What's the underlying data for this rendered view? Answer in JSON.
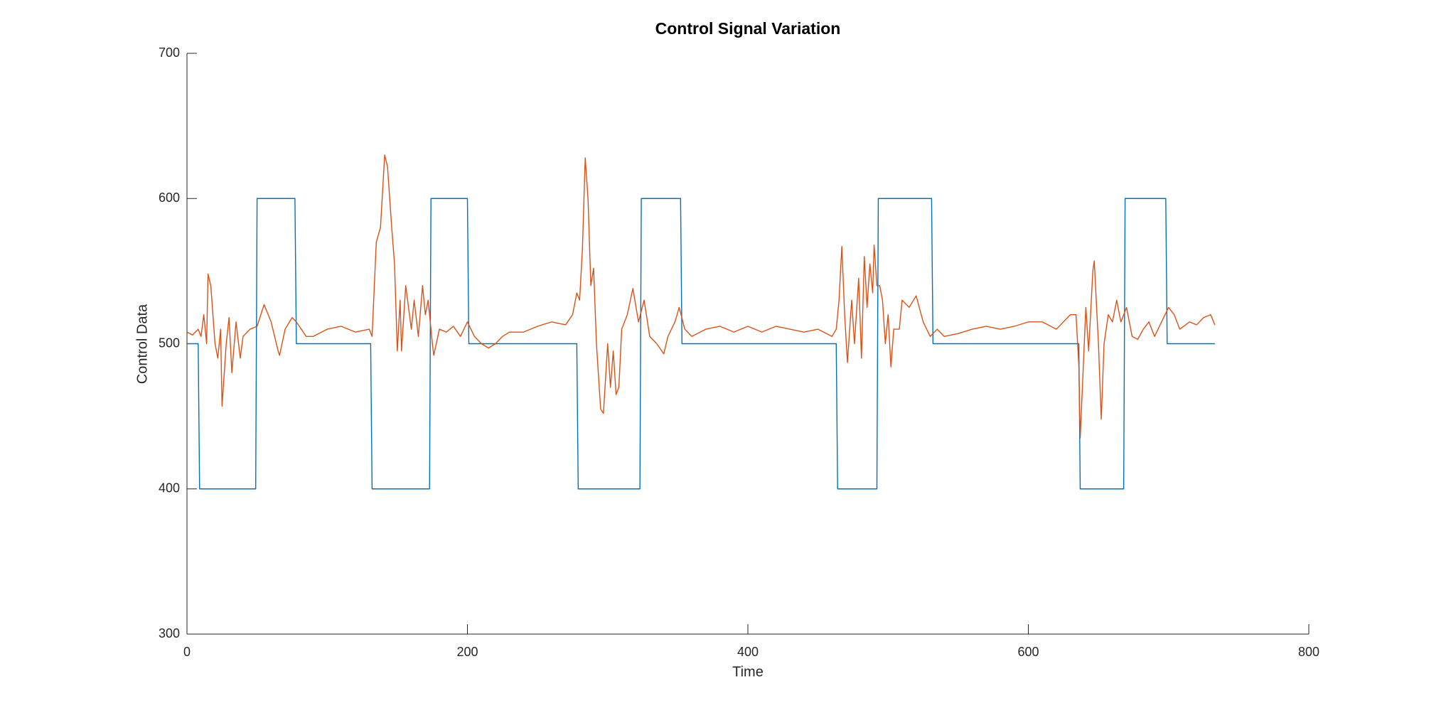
{
  "chart_data": {
    "type": "line",
    "title": "Control Signal Variation",
    "x_label": "Time",
    "y_label": "Control Data",
    "xlim": [
      0,
      800
    ],
    "xticks": [
      0,
      200,
      400,
      600,
      800
    ],
    "ylim": [
      300,
      700
    ],
    "yticks": [
      300,
      400,
      500,
      600,
      700
    ],
    "grid": false,
    "series": [
      {
        "color": "#0072BD",
        "x": [
          0,
          8,
          9,
          49,
          50,
          77,
          78,
          131,
          132,
          173,
          174,
          200,
          201,
          278,
          279,
          323,
          324,
          352,
          353,
          463,
          464,
          492,
          493,
          531,
          532,
          636,
          637,
          668,
          669,
          698,
          699,
          733
        ],
        "values": [
          500,
          500,
          400,
          400,
          600,
          600,
          500,
          500,
          400,
          400,
          600,
          600,
          500,
          500,
          400,
          400,
          600,
          600,
          500,
          500,
          400,
          400,
          600,
          600,
          500,
          500,
          400,
          400,
          600,
          600,
          500,
          500
        ]
      },
      {
        "color": "#D95319",
        "x": [
          0,
          4,
          8,
          10,
          12,
          14,
          15,
          17,
          20,
          22,
          24,
          25,
          28,
          30,
          32,
          35,
          38,
          40,
          45,
          50,
          55,
          60,
          65,
          66,
          70,
          75,
          78,
          85,
          90,
          100,
          110,
          120,
          130,
          132,
          135,
          138,
          141,
          143,
          146,
          148,
          150,
          152,
          153,
          156,
          160,
          162,
          165,
          168,
          170,
          172,
          175,
          176,
          180,
          185,
          190,
          195,
          200,
          205,
          210,
          215,
          220,
          225,
          230,
          240,
          250,
          260,
          270,
          275,
          278,
          280,
          282,
          284,
          286,
          288,
          290,
          292,
          295,
          297,
          300,
          302,
          304,
          306,
          308,
          310,
          314,
          318,
          322,
          326,
          330,
          335,
          340,
          343,
          348,
          351,
          355,
          360,
          370,
          380,
          390,
          400,
          410,
          420,
          430,
          440,
          450,
          460,
          463,
          465,
          467,
          469,
          471,
          474,
          476,
          479,
          481,
          483,
          485,
          487,
          489,
          490,
          492,
          494,
          496,
          498,
          500,
          502,
          504,
          508,
          510,
          515,
          520,
          525,
          530,
          535,
          540,
          550,
          560,
          570,
          580,
          590,
          600,
          610,
          620,
          630,
          634,
          636,
          637,
          639,
          641,
          643,
          646,
          647,
          650,
          652,
          654,
          657,
          660,
          663,
          666,
          670,
          674,
          678,
          682,
          686,
          690,
          695,
          700,
          704,
          708,
          715,
          720,
          725,
          730,
          733
        ],
        "values": [
          508,
          506,
          510,
          505,
          520,
          500,
          548,
          540,
          500,
          490,
          510,
          457,
          500,
          518,
          480,
          515,
          490,
          505,
          510,
          512,
          527,
          515,
          495,
          492,
          510,
          518,
          515,
          505,
          505,
          510,
          512,
          508,
          510,
          505,
          570,
          580,
          630,
          622,
          580,
          555,
          495,
          530,
          495,
          540,
          510,
          530,
          505,
          540,
          520,
          530,
          500,
          492,
          510,
          508,
          512,
          505,
          515,
          505,
          500,
          497,
          500,
          505,
          508,
          508,
          512,
          515,
          513,
          520,
          535,
          530,
          565,
          628,
          600,
          540,
          552,
          500,
          455,
          452,
          500,
          470,
          495,
          465,
          470,
          510,
          520,
          538,
          515,
          530,
          505,
          500,
          493,
          505,
          515,
          525,
          510,
          505,
          510,
          512,
          508,
          512,
          508,
          512,
          510,
          508,
          510,
          505,
          510,
          530,
          567,
          520,
          487,
          530,
          500,
          545,
          490,
          560,
          525,
          555,
          535,
          568,
          540,
          540,
          530,
          500,
          520,
          484,
          510,
          510,
          530,
          525,
          533,
          515,
          505,
          510,
          505,
          507,
          510,
          512,
          510,
          512,
          515,
          515,
          510,
          520,
          520,
          485,
          435,
          480,
          525,
          495,
          550,
          557,
          500,
          448,
          500,
          520,
          515,
          530,
          515,
          525,
          505,
          503,
          510,
          515,
          505,
          515,
          525,
          520,
          510,
          515,
          513,
          518,
          520,
          513
        ]
      }
    ]
  }
}
